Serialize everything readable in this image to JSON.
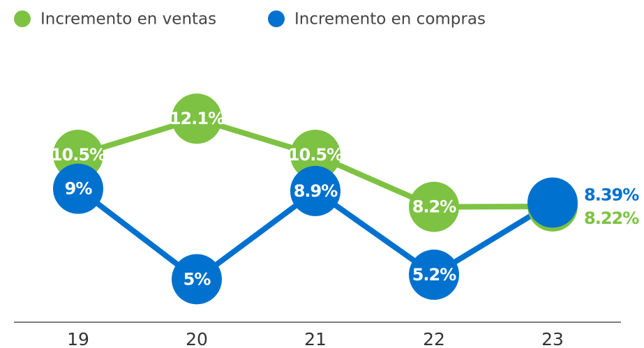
{
  "chart_data": {
    "type": "line",
    "categories": [
      "19",
      "20",
      "21",
      "22",
      "23"
    ],
    "series": [
      {
        "name": "Incremento en ventas",
        "color": "#7dc242",
        "values": [
          10.5,
          12.1,
          10.5,
          8.2,
          8.22
        ],
        "value_labels": [
          "10.5%",
          "12.1%",
          "10.5%",
          "8.2%",
          "8.22%"
        ]
      },
      {
        "name": "Incremento en compras",
        "color": "#0071ce",
        "values": [
          9,
          5,
          8.9,
          5.2,
          8.39
        ],
        "value_labels": [
          "9%",
          "5%",
          "8.9%",
          "5.2%",
          "8.39%"
        ]
      }
    ],
    "ylim": [
      3.5,
      13
    ]
  }
}
